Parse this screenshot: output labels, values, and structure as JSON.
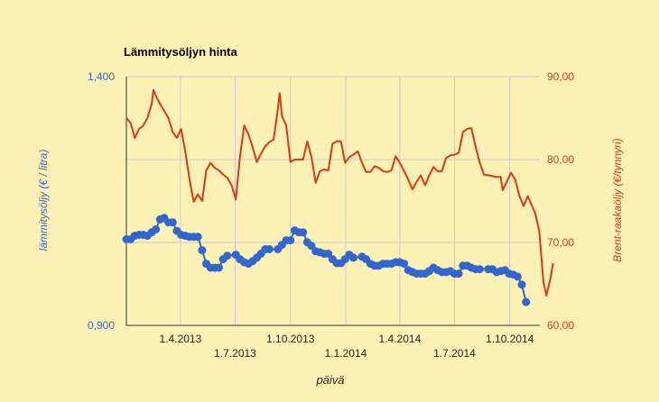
{
  "chart_data": {
    "type": "line",
    "title": "Lämmitysöljyn hinta",
    "xlabel": "päivä",
    "ylabel_left": "lämmitysöljy (€ / litra)",
    "ylabel_right": "Brent-raakaöljy (€/tynnyri)",
    "x_range": [
      "2013-01-01",
      "2014-11-20"
    ],
    "x_ticks": [
      {
        "date": "2013-04-01",
        "label": "1.4.2013"
      },
      {
        "date": "2013-07-01",
        "label": "1.7.2013"
      },
      {
        "date": "2013-10-01",
        "label": "1.10.2013"
      },
      {
        "date": "2014-01-01",
        "label": "1.1.2014"
      },
      {
        "date": "2014-04-01",
        "label": "1.4.2014"
      },
      {
        "date": "2014-07-01",
        "label": "1.7.2014"
      },
      {
        "date": "2014-10-01",
        "label": "1.10.2014"
      }
    ],
    "y_left": {
      "min": 0.9,
      "max": 1.4,
      "tick_labels": [
        "0,900",
        "1,400"
      ],
      "color": "#3366CC"
    },
    "y_right": {
      "min": 60,
      "max": 90,
      "tick_labels": [
        "60,00",
        "70,00",
        "80,00",
        "90,00"
      ],
      "color": "#DC3912"
    },
    "grid": true,
    "series": [
      {
        "name": "lämmitysöljy",
        "axis": "left",
        "color": "#3366CC",
        "marker": "circle",
        "points": [
          {
            "x": "2013-01-01",
            "y": 1.073
          },
          {
            "x": "2013-01-08",
            "y": 1.073
          },
          {
            "x": "2013-01-15",
            "y": 1.08
          },
          {
            "x": "2013-01-22",
            "y": 1.082
          },
          {
            "x": "2013-01-29",
            "y": 1.082
          },
          {
            "x": "2013-02-05",
            "y": 1.08
          },
          {
            "x": "2013-02-12",
            "y": 1.087
          },
          {
            "x": "2013-02-19",
            "y": 1.093
          },
          {
            "x": "2013-02-26",
            "y": 1.113
          },
          {
            "x": "2013-03-05",
            "y": 1.116
          },
          {
            "x": "2013-03-12",
            "y": 1.107
          },
          {
            "x": "2013-03-19",
            "y": 1.107
          },
          {
            "x": "2013-03-26",
            "y": 1.09
          },
          {
            "x": "2013-04-02",
            "y": 1.082
          },
          {
            "x": "2013-04-09",
            "y": 1.08
          },
          {
            "x": "2013-04-16",
            "y": 1.078
          },
          {
            "x": "2013-04-23",
            "y": 1.078
          },
          {
            "x": "2013-04-30",
            "y": 1.078
          },
          {
            "x": "2013-05-07",
            "y": 1.051
          },
          {
            "x": "2013-05-14",
            "y": 1.024
          },
          {
            "x": "2013-05-21",
            "y": 1.016
          },
          {
            "x": "2013-05-28",
            "y": 1.016
          },
          {
            "x": "2013-06-04",
            "y": 1.016
          },
          {
            "x": "2013-06-11",
            "y": 1.033
          },
          {
            "x": "2013-06-18",
            "y": 1.04
          },
          {
            "x": "2013-07-02",
            "y": 1.042
          },
          {
            "x": "2013-07-09",
            "y": 1.033
          },
          {
            "x": "2013-07-16",
            "y": 1.027
          },
          {
            "x": "2013-07-23",
            "y": 1.024
          },
          {
            "x": "2013-07-30",
            "y": 1.029
          },
          {
            "x": "2013-08-06",
            "y": 1.036
          },
          {
            "x": "2013-08-13",
            "y": 1.044
          },
          {
            "x": "2013-08-20",
            "y": 1.053
          },
          {
            "x": "2013-08-27",
            "y": 1.053
          },
          {
            "x": "2013-09-10",
            "y": 1.053
          },
          {
            "x": "2013-09-17",
            "y": 1.062
          },
          {
            "x": "2013-09-24",
            "y": 1.071
          },
          {
            "x": "2013-10-01",
            "y": 1.071
          },
          {
            "x": "2013-10-08",
            "y": 1.091
          },
          {
            "x": "2013-10-15",
            "y": 1.087
          },
          {
            "x": "2013-10-22",
            "y": 1.087
          },
          {
            "x": "2013-10-29",
            "y": 1.067
          },
          {
            "x": "2013-11-05",
            "y": 1.06
          },
          {
            "x": "2013-11-12",
            "y": 1.049
          },
          {
            "x": "2013-11-19",
            "y": 1.047
          },
          {
            "x": "2013-11-26",
            "y": 1.044
          },
          {
            "x": "2013-12-03",
            "y": 1.044
          },
          {
            "x": "2013-12-10",
            "y": 1.033
          },
          {
            "x": "2013-12-17",
            "y": 1.025
          },
          {
            "x": "2013-12-24",
            "y": 1.025
          },
          {
            "x": "2013-12-31",
            "y": 1.033
          },
          {
            "x": "2014-01-07",
            "y": 1.042
          },
          {
            "x": "2014-01-14",
            "y": 1.036
          },
          {
            "x": "2014-01-28",
            "y": 1.038
          },
          {
            "x": "2014-02-04",
            "y": 1.033
          },
          {
            "x": "2014-02-11",
            "y": 1.024
          },
          {
            "x": "2014-02-18",
            "y": 1.02
          },
          {
            "x": "2014-02-25",
            "y": 1.02
          },
          {
            "x": "2014-03-04",
            "y": 1.024
          },
          {
            "x": "2014-03-11",
            "y": 1.024
          },
          {
            "x": "2014-03-18",
            "y": 1.024
          },
          {
            "x": "2014-03-25",
            "y": 1.027
          },
          {
            "x": "2014-04-01",
            "y": 1.027
          },
          {
            "x": "2014-04-08",
            "y": 1.024
          },
          {
            "x": "2014-04-15",
            "y": 1.011
          },
          {
            "x": "2014-04-22",
            "y": 1.007
          },
          {
            "x": "2014-04-29",
            "y": 1.004
          },
          {
            "x": "2014-05-06",
            "y": 1.004
          },
          {
            "x": "2014-05-13",
            "y": 1.004
          },
          {
            "x": "2014-05-20",
            "y": 1.009
          },
          {
            "x": "2014-05-27",
            "y": 1.016
          },
          {
            "x": "2014-06-03",
            "y": 1.011
          },
          {
            "x": "2014-06-10",
            "y": 1.007
          },
          {
            "x": "2014-06-17",
            "y": 1.007
          },
          {
            "x": "2014-06-24",
            "y": 1.009
          },
          {
            "x": "2014-07-01",
            "y": 1.004
          },
          {
            "x": "2014-07-08",
            "y": 1.004
          },
          {
            "x": "2014-07-15",
            "y": 1.02
          },
          {
            "x": "2014-07-22",
            "y": 1.02
          },
          {
            "x": "2014-07-29",
            "y": 1.016
          },
          {
            "x": "2014-08-05",
            "y": 1.013
          },
          {
            "x": "2014-08-12",
            "y": 1.013
          },
          {
            "x": "2014-08-26",
            "y": 1.013
          },
          {
            "x": "2014-09-02",
            "y": 1.013
          },
          {
            "x": "2014-09-09",
            "y": 1.007
          },
          {
            "x": "2014-09-16",
            "y": 1.009
          },
          {
            "x": "2014-09-23",
            "y": 1.011
          },
          {
            "x": "2014-09-30",
            "y": 1.004
          },
          {
            "x": "2014-10-07",
            "y": 1.002
          },
          {
            "x": "2014-10-14",
            "y": 0.998
          },
          {
            "x": "2014-10-21",
            "y": 0.982
          },
          {
            "x": "2014-10-28",
            "y": 0.947
          }
        ]
      },
      {
        "name": "Brent-raakaöljy",
        "axis": "right",
        "color": "#DC3912",
        "marker": "none",
        "points": [
          {
            "x": "2013-01-01",
            "y": 85.0
          },
          {
            "x": "2013-01-08",
            "y": 84.4
          },
          {
            "x": "2013-01-15",
            "y": 82.6
          },
          {
            "x": "2013-01-22",
            "y": 83.7
          },
          {
            "x": "2013-01-29",
            "y": 84.1
          },
          {
            "x": "2013-02-05",
            "y": 85.0
          },
          {
            "x": "2013-02-12",
            "y": 86.7
          },
          {
            "x": "2013-02-15",
            "y": 88.4
          },
          {
            "x": "2013-02-19",
            "y": 87.7
          },
          {
            "x": "2013-02-26",
            "y": 86.7
          },
          {
            "x": "2013-03-12",
            "y": 85.0
          },
          {
            "x": "2013-03-19",
            "y": 83.3
          },
          {
            "x": "2013-03-26",
            "y": 82.6
          },
          {
            "x": "2013-04-02",
            "y": 83.7
          },
          {
            "x": "2013-04-09",
            "y": 81.0
          },
          {
            "x": "2013-04-16",
            "y": 77.6
          },
          {
            "x": "2013-04-23",
            "y": 74.9
          },
          {
            "x": "2013-04-30",
            "y": 75.8
          },
          {
            "x": "2013-05-07",
            "y": 75.0
          },
          {
            "x": "2013-05-14",
            "y": 78.7
          },
          {
            "x": "2013-05-21",
            "y": 79.6
          },
          {
            "x": "2013-05-28",
            "y": 79.0
          },
          {
            "x": "2013-06-04",
            "y": 78.7
          },
          {
            "x": "2013-06-11",
            "y": 78.2
          },
          {
            "x": "2013-06-18",
            "y": 77.8
          },
          {
            "x": "2013-06-25",
            "y": 76.9
          },
          {
            "x": "2013-07-02",
            "y": 75.2
          },
          {
            "x": "2013-07-09",
            "y": 80.3
          },
          {
            "x": "2013-07-16",
            "y": 84.1
          },
          {
            "x": "2013-07-23",
            "y": 83.1
          },
          {
            "x": "2013-07-30",
            "y": 81.5
          },
          {
            "x": "2013-08-06",
            "y": 79.7
          },
          {
            "x": "2013-08-13",
            "y": 80.7
          },
          {
            "x": "2013-08-20",
            "y": 81.6
          },
          {
            "x": "2013-08-27",
            "y": 82.1
          },
          {
            "x": "2013-09-03",
            "y": 82.4
          },
          {
            "x": "2013-09-10",
            "y": 86.1
          },
          {
            "x": "2013-09-13",
            "y": 88.0
          },
          {
            "x": "2013-09-17",
            "y": 85.2
          },
          {
            "x": "2013-09-24",
            "y": 84.1
          },
          {
            "x": "2013-10-01",
            "y": 79.7
          },
          {
            "x": "2013-10-08",
            "y": 80.0
          },
          {
            "x": "2013-10-15",
            "y": 80.0
          },
          {
            "x": "2013-10-22",
            "y": 80.0
          },
          {
            "x": "2013-10-29",
            "y": 82.2
          },
          {
            "x": "2013-11-05",
            "y": 80.3
          },
          {
            "x": "2013-11-12",
            "y": 77.2
          },
          {
            "x": "2013-11-19",
            "y": 78.6
          },
          {
            "x": "2013-11-26",
            "y": 78.8
          },
          {
            "x": "2013-12-03",
            "y": 78.7
          },
          {
            "x": "2013-12-10",
            "y": 81.9
          },
          {
            "x": "2013-12-17",
            "y": 82.2
          },
          {
            "x": "2013-12-24",
            "y": 82.2
          },
          {
            "x": "2013-12-31",
            "y": 79.6
          },
          {
            "x": "2014-01-07",
            "y": 80.3
          },
          {
            "x": "2014-01-14",
            "y": 80.6
          },
          {
            "x": "2014-01-21",
            "y": 81.0
          },
          {
            "x": "2014-01-28",
            "y": 79.6
          },
          {
            "x": "2014-02-04",
            "y": 78.5
          },
          {
            "x": "2014-02-11",
            "y": 78.5
          },
          {
            "x": "2014-02-18",
            "y": 79.2
          },
          {
            "x": "2014-02-25",
            "y": 79.0
          },
          {
            "x": "2014-03-04",
            "y": 78.6
          },
          {
            "x": "2014-03-11",
            "y": 78.5
          },
          {
            "x": "2014-03-18",
            "y": 78.7
          },
          {
            "x": "2014-03-25",
            "y": 80.4
          },
          {
            "x": "2014-04-01",
            "y": 79.6
          },
          {
            "x": "2014-04-08",
            "y": 78.6
          },
          {
            "x": "2014-04-15",
            "y": 77.6
          },
          {
            "x": "2014-04-22",
            "y": 76.4
          },
          {
            "x": "2014-04-29",
            "y": 77.3
          },
          {
            "x": "2014-05-06",
            "y": 78.1
          },
          {
            "x": "2014-05-13",
            "y": 76.9
          },
          {
            "x": "2014-05-20",
            "y": 78.1
          },
          {
            "x": "2014-05-27",
            "y": 79.1
          },
          {
            "x": "2014-06-03",
            "y": 78.6
          },
          {
            "x": "2014-06-10",
            "y": 78.6
          },
          {
            "x": "2014-06-17",
            "y": 80.2
          },
          {
            "x": "2014-06-24",
            "y": 80.5
          },
          {
            "x": "2014-07-01",
            "y": 80.6
          },
          {
            "x": "2014-07-08",
            "y": 80.8
          },
          {
            "x": "2014-07-15",
            "y": 83.3
          },
          {
            "x": "2014-07-22",
            "y": 83.7
          },
          {
            "x": "2014-07-29",
            "y": 83.8
          },
          {
            "x": "2014-08-05",
            "y": 81.6
          },
          {
            "x": "2014-08-12",
            "y": 79.6
          },
          {
            "x": "2014-08-19",
            "y": 78.2
          },
          {
            "x": "2014-08-26",
            "y": 78.1
          },
          {
            "x": "2014-09-02",
            "y": 78.0
          },
          {
            "x": "2014-09-09",
            "y": 77.9
          },
          {
            "x": "2014-09-16",
            "y": 77.9
          },
          {
            "x": "2014-09-19",
            "y": 76.3
          },
          {
            "x": "2014-09-26",
            "y": 77.3
          },
          {
            "x": "2014-10-03",
            "y": 78.4
          },
          {
            "x": "2014-10-10",
            "y": 77.6
          },
          {
            "x": "2014-10-17",
            "y": 75.6
          },
          {
            "x": "2014-10-24",
            "y": 74.4
          },
          {
            "x": "2014-10-31",
            "y": 75.6
          },
          {
            "x": "2014-11-07",
            "y": 74.4
          },
          {
            "x": "2014-11-12",
            "y": 73.6
          },
          {
            "x": "2014-11-19",
            "y": 71.4
          },
          {
            "x": "2014-11-26",
            "y": 65.2
          },
          {
            "x": "2014-12-01",
            "y": 63.6
          },
          {
            "x": "2014-12-08",
            "y": 65.8
          },
          {
            "x": "2014-12-12",
            "y": 67.5
          }
        ]
      }
    ]
  }
}
